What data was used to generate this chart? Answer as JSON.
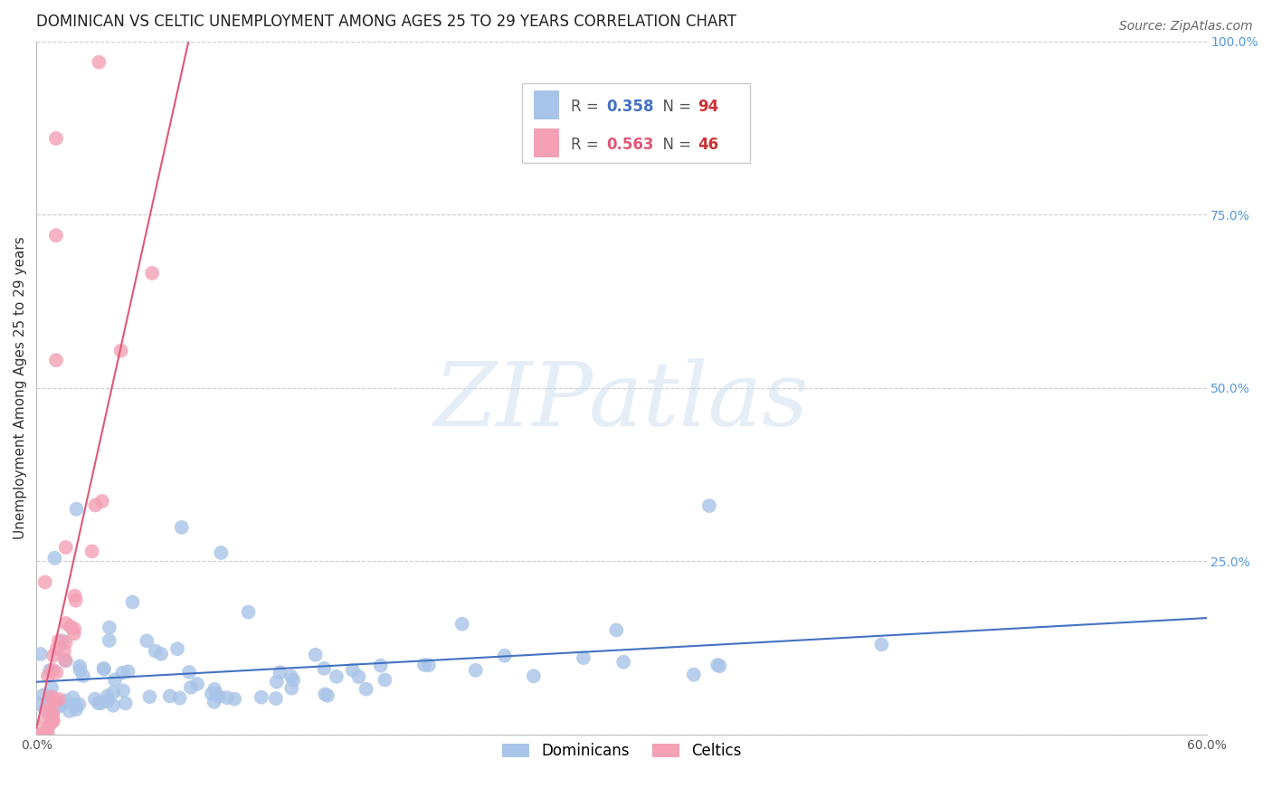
{
  "title": "DOMINICAN VS CELTIC UNEMPLOYMENT AMONG AGES 25 TO 29 YEARS CORRELATION CHART",
  "source": "Source: ZipAtlas.com",
  "ylabel": "Unemployment Among Ages 25 to 29 years",
  "xlim": [
    0.0,
    0.6
  ],
  "ylim": [
    0.0,
    1.0
  ],
  "yticks_right": [
    0.0,
    0.25,
    0.5,
    0.75,
    1.0
  ],
  "ytick_right_labels": [
    "",
    "25.0%",
    "50.0%",
    "75.0%",
    "100.0%"
  ],
  "blue_scatter_color": "#a8c4e8",
  "pink_scatter_color": "#f4a0b5",
  "blue_line_color": "#4472c4",
  "pink_line_color": "#e05878",
  "legend_blue_label": "Dominicans",
  "legend_pink_label": "Celtics",
  "blue_R_val": "0.358",
  "blue_N_val": "94",
  "pink_R_val": "0.563",
  "pink_N_val": "46",
  "blue_N": 94,
  "pink_N": 46,
  "watermark": "ZIPatlas",
  "title_fontsize": 12,
  "source_fontsize": 10,
  "axis_label_fontsize": 11,
  "tick_fontsize": 10,
  "grid_color": "#cccccc",
  "background_color": "#ffffff",
  "blue_seed": 42,
  "pink_seed": 123
}
